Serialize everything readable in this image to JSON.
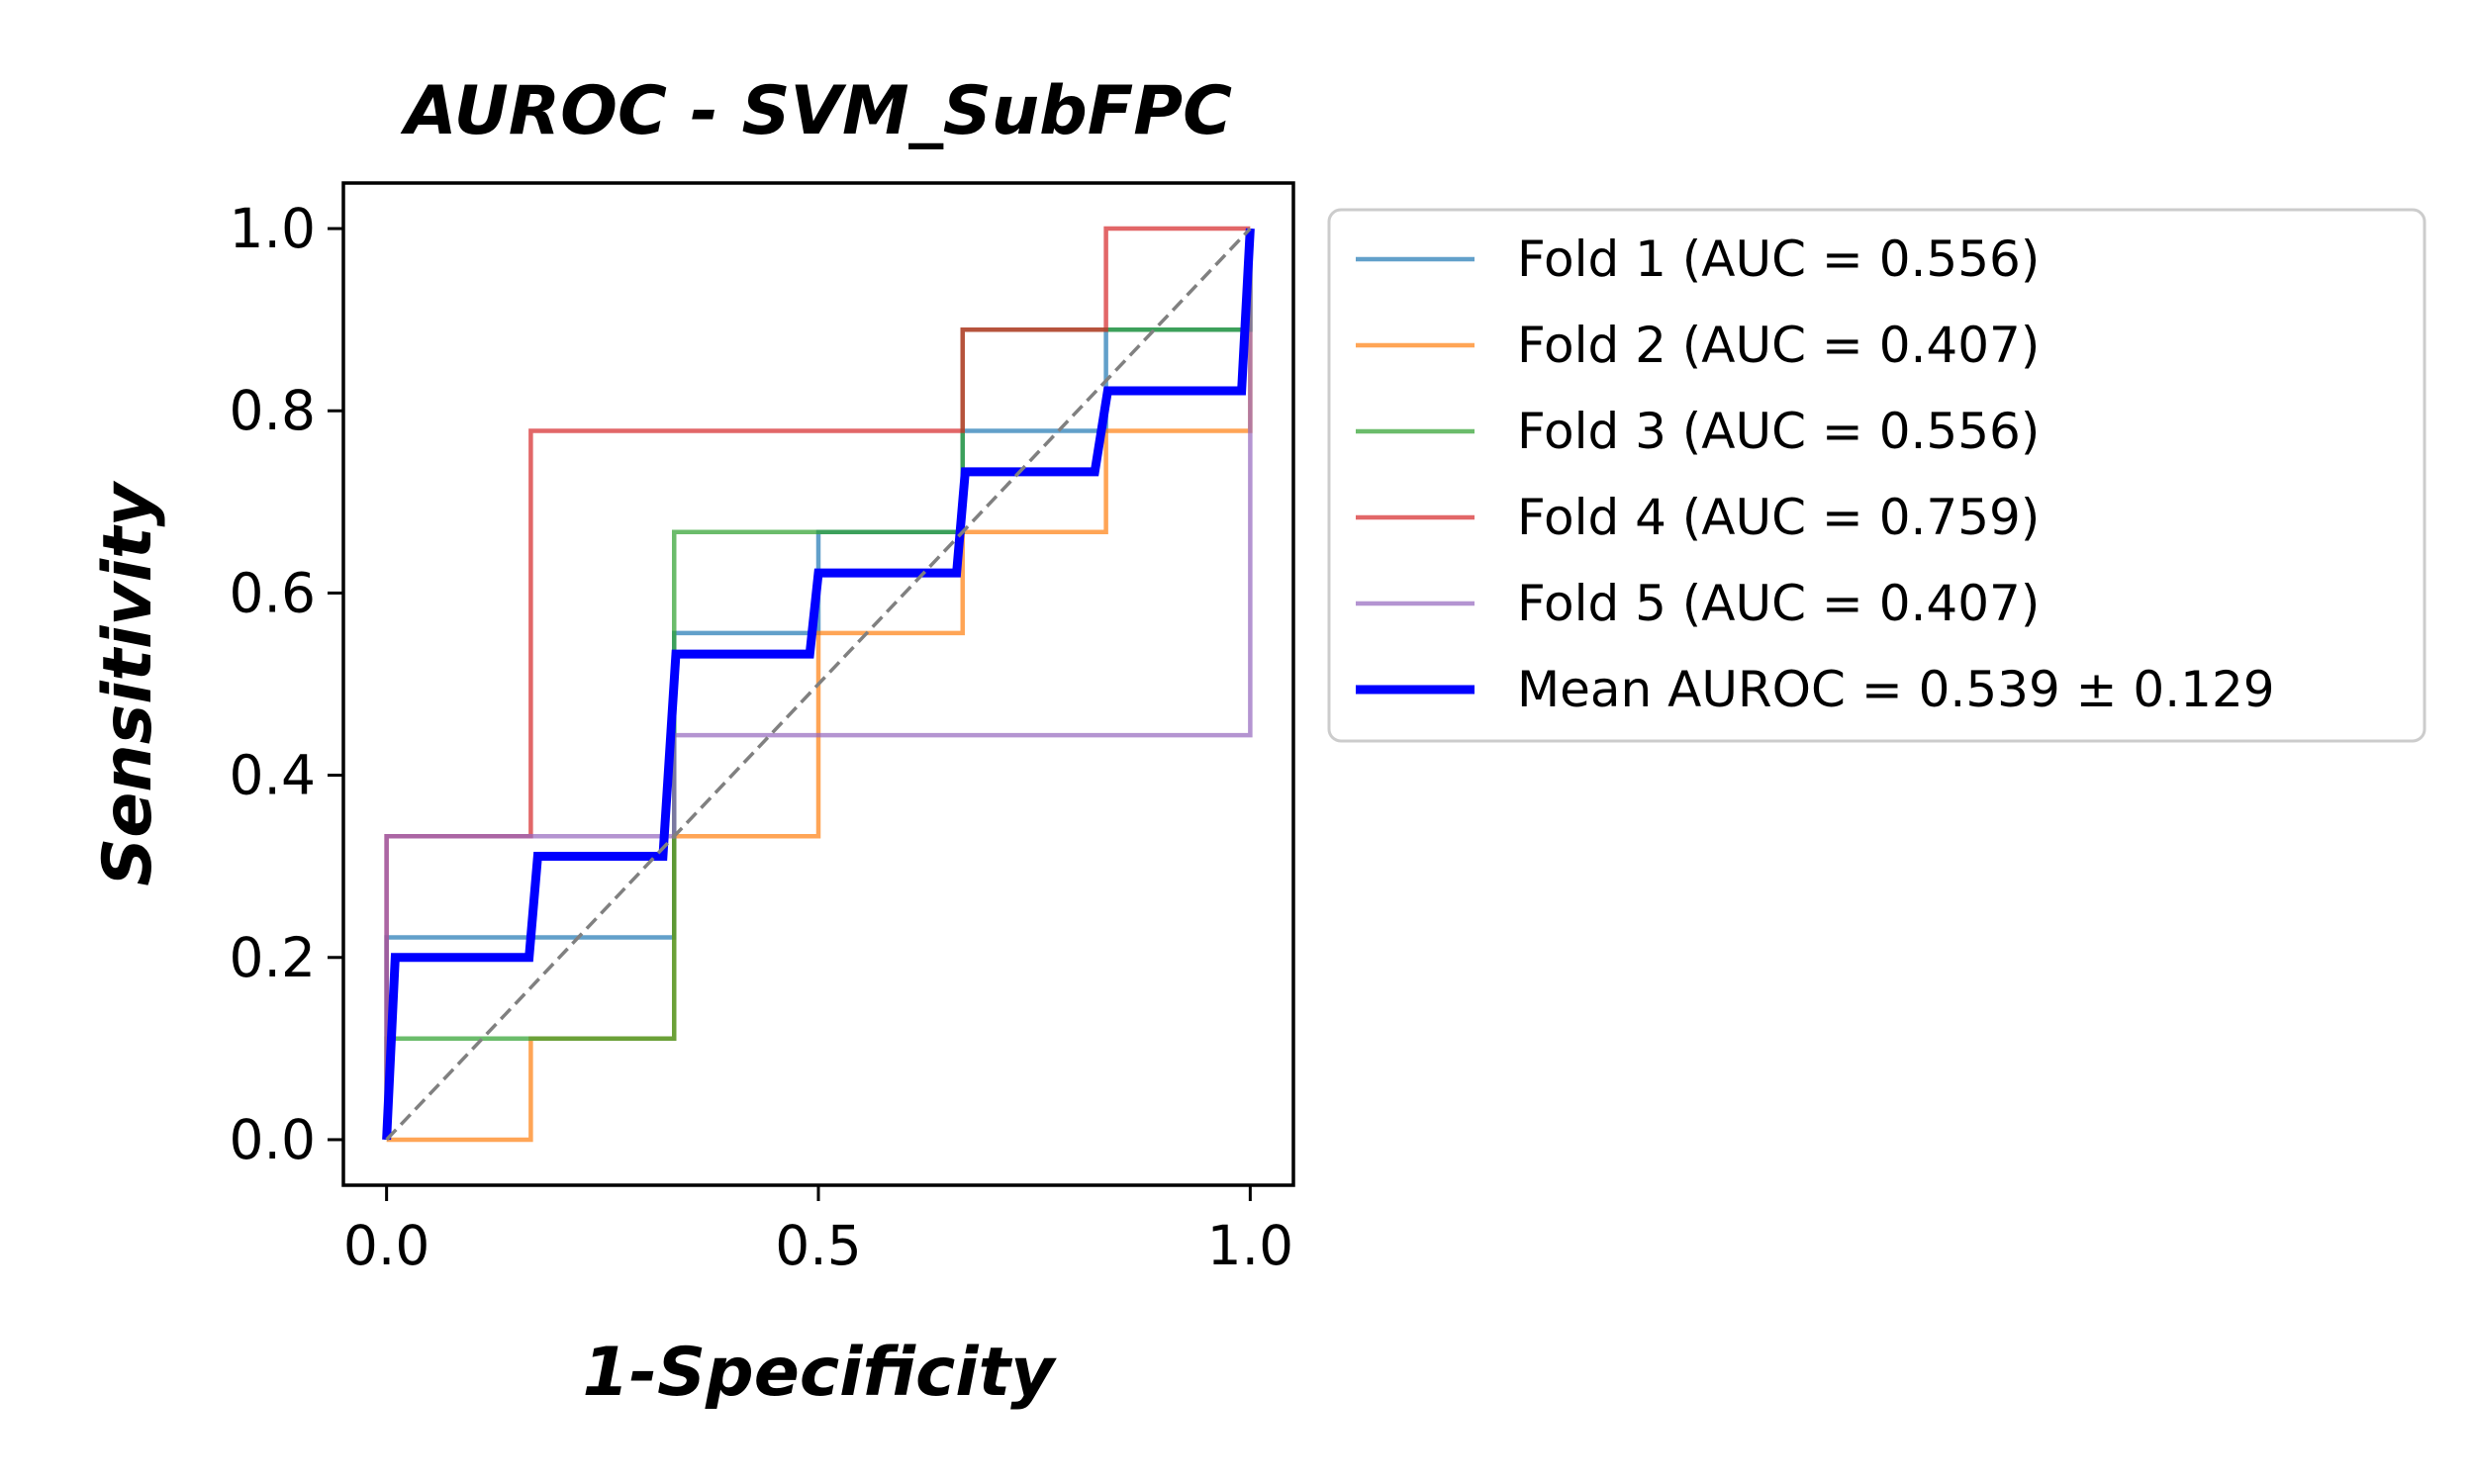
{
  "chart_data": {
    "type": "line",
    "title": "AUROC - SVM_SubFPC",
    "xlabel": "1-Specificity",
    "ylabel": "Sensitivity",
    "xlim": [
      -0.05,
      1.05
    ],
    "ylim": [
      -0.05,
      1.05
    ],
    "xticks": [
      0.0,
      0.5,
      1.0
    ],
    "xtick_labels": [
      "0.0",
      "0.5",
      "1.0"
    ],
    "yticks": [
      0.0,
      0.2,
      0.4,
      0.6,
      0.8,
      1.0
    ],
    "ytick_labels": [
      "0.0",
      "0.2",
      "0.4",
      "0.6",
      "0.8",
      "1.0"
    ],
    "grid": false,
    "legend_position": "outside-right",
    "series": [
      {
        "name": "Fold 1 (AUC = 0.556)",
        "color": "#1f77b4",
        "x": [
          0,
          0,
          0.333,
          0.333,
          0.5,
          0.5,
          0.667,
          0.667,
          0.833,
          0.833,
          1.0,
          1.0
        ],
        "y": [
          0,
          0.222,
          0.222,
          0.556,
          0.556,
          0.667,
          0.667,
          0.778,
          0.778,
          0.889,
          0.889,
          1.0
        ]
      },
      {
        "name": "Fold 2 (AUC = 0.407)",
        "color": "#ff7f0e",
        "x": [
          0,
          0.167,
          0.167,
          0.333,
          0.333,
          0.5,
          0.5,
          0.667,
          0.667,
          0.833,
          0.833,
          1.0,
          1.0
        ],
        "y": [
          0,
          0,
          0.111,
          0.111,
          0.333,
          0.333,
          0.556,
          0.556,
          0.667,
          0.667,
          0.778,
          0.778,
          1.0
        ]
      },
      {
        "name": "Fold 3 (AUC = 0.556)",
        "color": "#2ca02c",
        "x": [
          0,
          0,
          0.333,
          0.333,
          0.667,
          0.667,
          1.0,
          1.0
        ],
        "y": [
          0,
          0.111,
          0.111,
          0.667,
          0.667,
          0.889,
          0.889,
          1.0
        ]
      },
      {
        "name": "Fold 4 (AUC = 0.759)",
        "color": "#d62728",
        "x": [
          0,
          0,
          0.167,
          0.167,
          0.667,
          0.667,
          0.833,
          0.833,
          1.0
        ],
        "y": [
          0,
          0.333,
          0.333,
          0.778,
          0.778,
          0.889,
          0.889,
          1.0,
          1.0
        ]
      },
      {
        "name": "Fold 5 (AUC = 0.407)",
        "color": "#9467bd",
        "x": [
          0,
          0,
          0.333,
          0.333,
          1.0,
          1.0
        ],
        "y": [
          0,
          0.333,
          0.333,
          0.444,
          0.444,
          1.0
        ]
      },
      {
        "name": "Mean AUROC = 0.539 ± 0.129",
        "color": "#0000ff",
        "x": [
          0,
          0.01,
          0.165,
          0.175,
          0.32,
          0.335,
          0.49,
          0.5,
          0.66,
          0.67,
          0.82,
          0.835,
          0.99,
          1.0
        ],
        "y": [
          0,
          0.2,
          0.2,
          0.311,
          0.311,
          0.533,
          0.533,
          0.622,
          0.622,
          0.733,
          0.733,
          0.822,
          0.822,
          1.0
        ]
      }
    ],
    "reference_line": {
      "x": [
        0,
        1
      ],
      "y": [
        0,
        1
      ],
      "color": "#808080"
    }
  }
}
